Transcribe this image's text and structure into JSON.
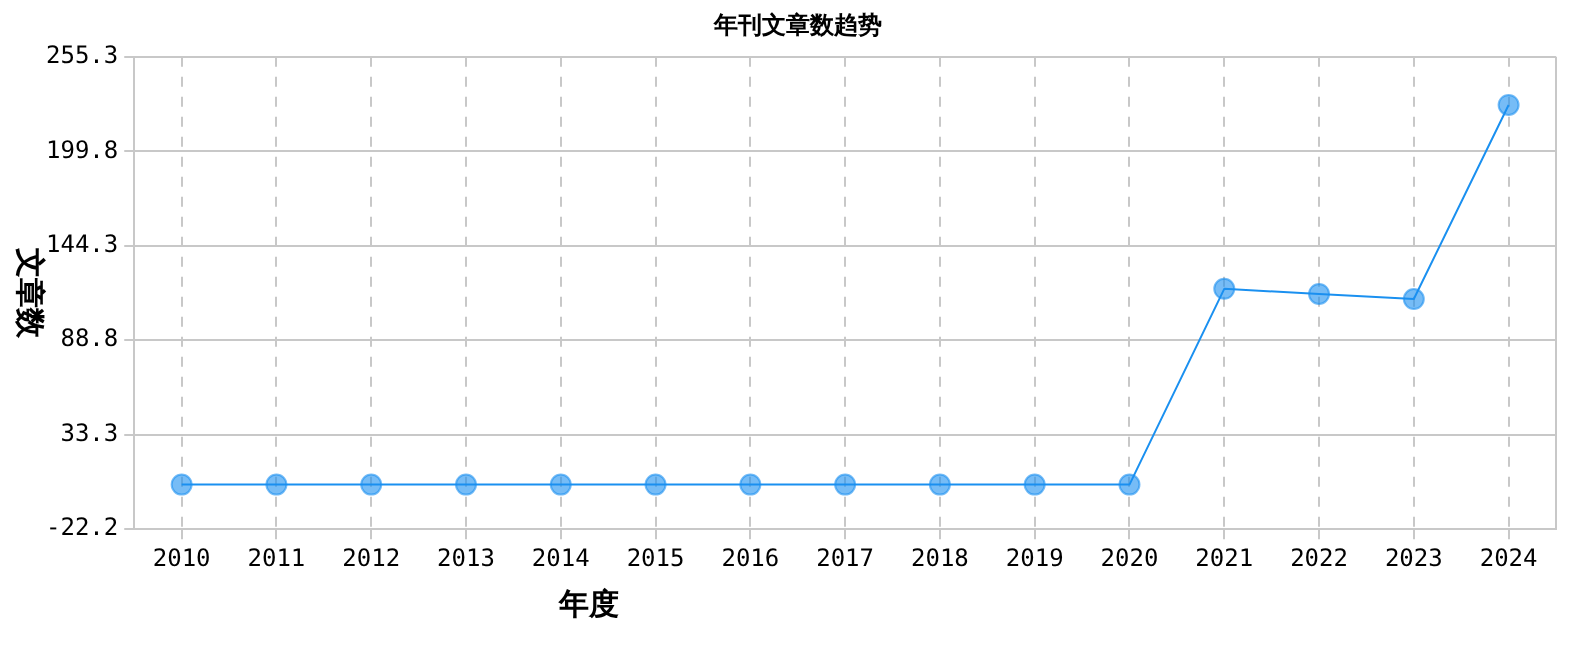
{
  "chart_data": {
    "type": "line",
    "title": "年刊文章数趋势",
    "xlabel": "年度",
    "ylabel": "文章数",
    "categories": [
      "2010",
      "2011",
      "2012",
      "2013",
      "2014",
      "2015",
      "2016",
      "2017",
      "2018",
      "2019",
      "2020",
      "2021",
      "2022",
      "2023",
      "2024"
    ],
    "series": [
      {
        "color": "#1a90f0",
        "values": [
          4,
          4,
          4,
          4,
          4,
          4,
          4,
          4,
          4,
          4,
          4,
          119,
          116,
          113,
          227
        ]
      }
    ],
    "ylim": [
      -22.2,
      255.3
    ],
    "yticks": [
      -22.2,
      33.3,
      88.8,
      144.3,
      199.8,
      255.3
    ],
    "grid": true,
    "marker": "circle",
    "line_style": "solid",
    "legend": false
  }
}
